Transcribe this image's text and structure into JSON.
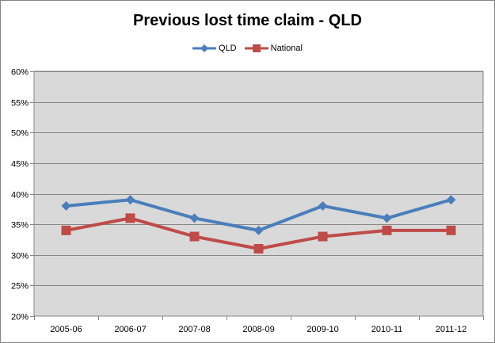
{
  "chart_data": {
    "type": "line",
    "title": "Previous lost time claim - QLD",
    "categories": [
      "2005-06",
      "2006-07",
      "2007-08",
      "2008-09",
      "2009-10",
      "2010-11",
      "2011-12"
    ],
    "series": [
      {
        "name": "QLD",
        "values": [
          38,
          39,
          36,
          34,
          38,
          36,
          39
        ],
        "color": "#4a7ebb",
        "marker": "diamond"
      },
      {
        "name": "National",
        "values": [
          34,
          36,
          33,
          31,
          33,
          34,
          34
        ],
        "color": "#be4b48",
        "marker": "square"
      }
    ],
    "ylim": [
      20,
      60
    ],
    "ytick_step": 5,
    "ytick_labels": [
      "20%",
      "25%",
      "30%",
      "35%",
      "40%",
      "45%",
      "50%",
      "55%",
      "60%"
    ],
    "legend_position": "top",
    "grid": true,
    "plot_background": "#d9d9d9"
  }
}
